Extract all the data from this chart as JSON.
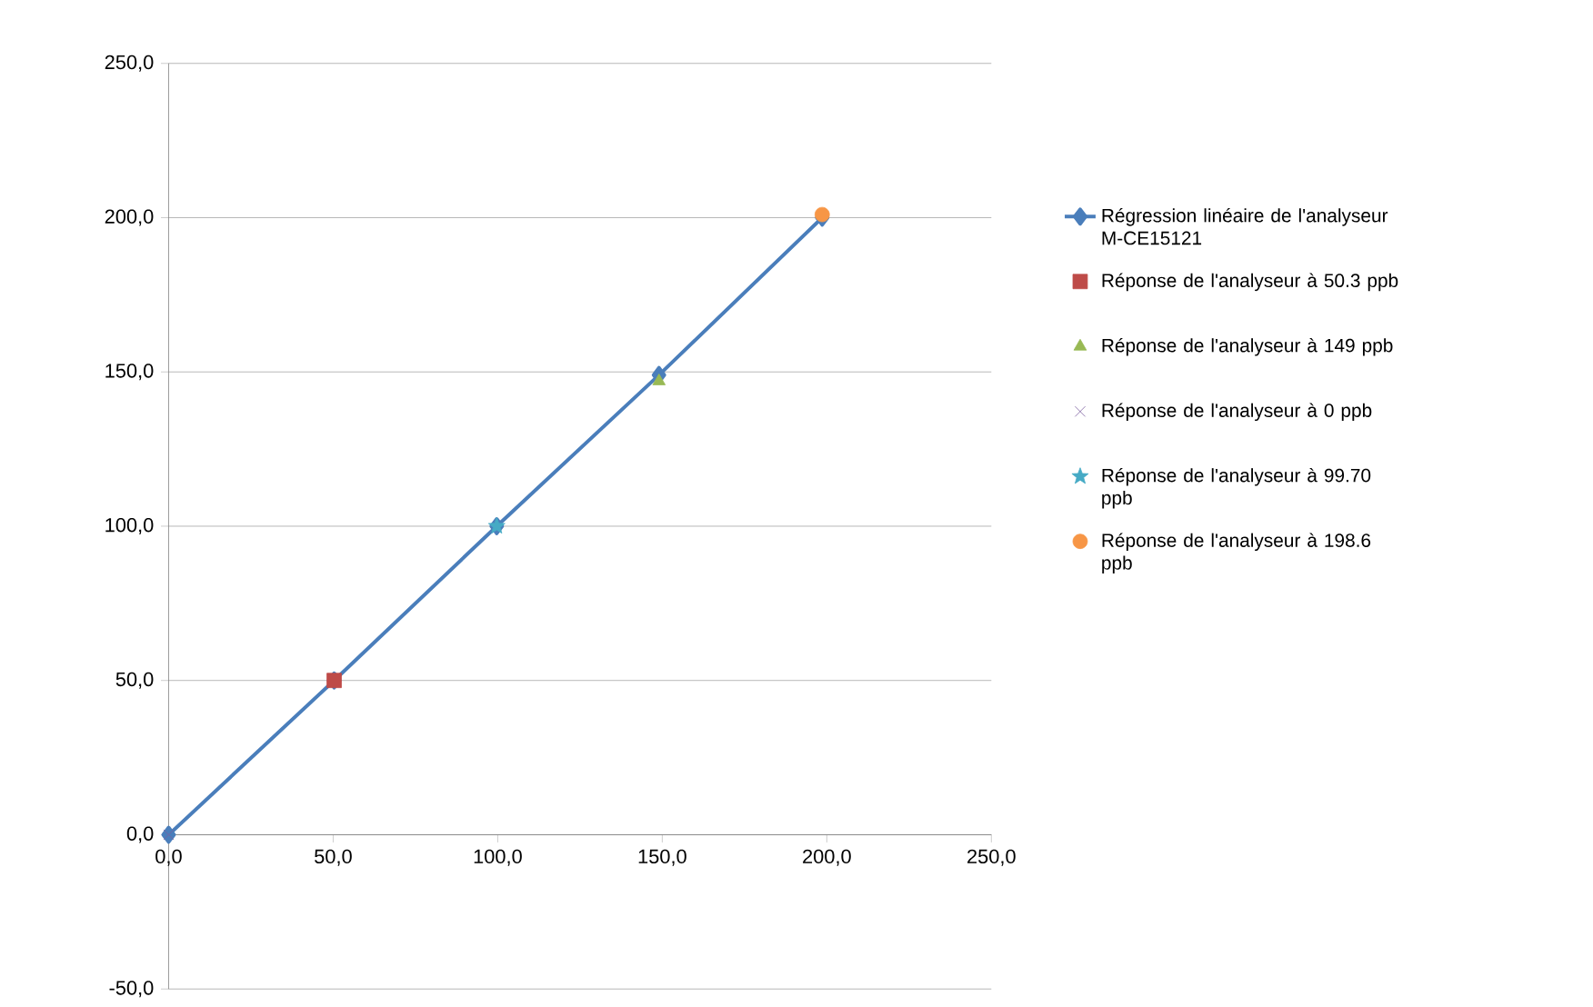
{
  "chart_data": {
    "type": "scatter",
    "xlim": [
      0,
      250
    ],
    "ylim": [
      -50,
      250
    ],
    "xticks": [
      {
        "value": 0,
        "label": "0,0"
      },
      {
        "value": 50,
        "label": "50,0"
      },
      {
        "value": 100,
        "label": "100,0"
      },
      {
        "value": 150,
        "label": "150,0"
      },
      {
        "value": 200,
        "label": "200,0"
      },
      {
        "value": 250,
        "label": "250,0"
      }
    ],
    "yticks": [
      {
        "value": -50,
        "label": "-50,0"
      },
      {
        "value": 0,
        "label": "0,0"
      },
      {
        "value": 50,
        "label": "50,0"
      },
      {
        "value": 100,
        "label": "100,0"
      },
      {
        "value": 150,
        "label": "150,0"
      },
      {
        "value": 200,
        "label": "200,0"
      },
      {
        "value": 250,
        "label": "250,0"
      }
    ],
    "grid": "y",
    "legend": "right",
    "series": [
      {
        "name": "Régression linéaire de l'analyseur M-CE15121",
        "type": "line",
        "marker": "diamond",
        "color": "#4a7ebb",
        "x": [
          0,
          50.3,
          99.7,
          149,
          198.6
        ],
        "values": [
          0,
          50,
          100,
          149,
          200
        ]
      },
      {
        "name": "Réponse de l'analyseur à 50.3 ppb",
        "marker": "square",
        "color": "#be4b48",
        "x": [
          50.3
        ],
        "values": [
          50
        ]
      },
      {
        "name": "Réponse de l'analyseur à 149 ppb",
        "marker": "triangle",
        "color": "#98b954",
        "x": [
          149
        ],
        "values": [
          147
        ]
      },
      {
        "name": "Réponse de l'analyseur à 0 ppb",
        "marker": "cross",
        "color": "#7d60a0",
        "x": [
          0
        ],
        "values": [
          0
        ]
      },
      {
        "name": "Réponse de l'analyseur à 99.70 ppb",
        "marker": "star",
        "color": "#46aac5",
        "x": [
          99.7
        ],
        "values": [
          100
        ]
      },
      {
        "name": "Réponse de l'analyseur à 198.6 ppb",
        "marker": "circle",
        "color": "#f79646",
        "x": [
          198.6
        ],
        "values": [
          201
        ]
      }
    ]
  }
}
